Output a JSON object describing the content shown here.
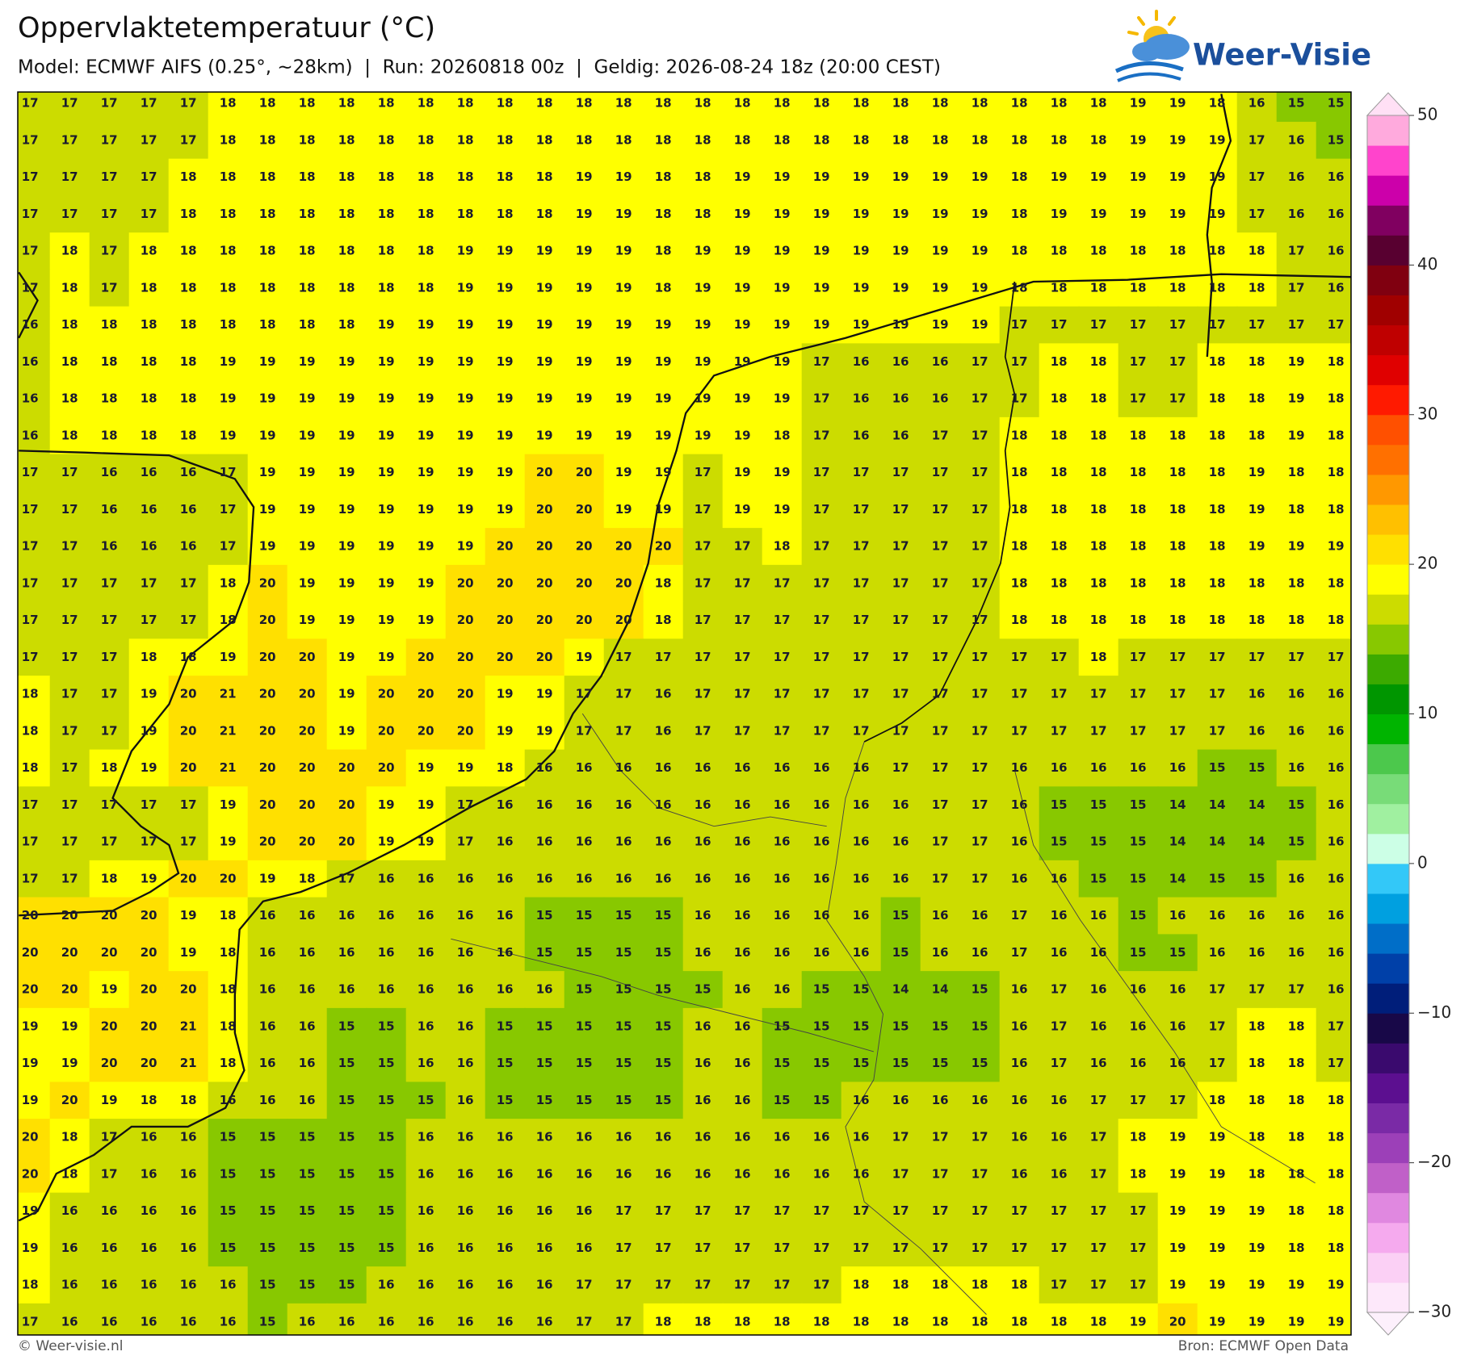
{
  "header": {
    "title": "Oppervlaktetemperatuur (°C)",
    "subtitle": "Model: ECMWF AIFS (0.25°, ~28km)  |  Run: 20260818 00z  |  Geldig: 2026-08-24 18z (20:00 CEST)",
    "logo": "Weer-Visie"
  },
  "chart_data": {
    "type": "heatmap",
    "values": [
      [
        17,
        17,
        17,
        17,
        17,
        18,
        18,
        18,
        18,
        18,
        18,
        18,
        18,
        18,
        18,
        18,
        18,
        18,
        18,
        18,
        18,
        18,
        18,
        18,
        18,
        18,
        18,
        18,
        19,
        19,
        18,
        16,
        15,
        15
      ],
      [
        17,
        17,
        17,
        17,
        17,
        18,
        18,
        18,
        18,
        18,
        18,
        18,
        18,
        18,
        18,
        18,
        18,
        18,
        18,
        18,
        18,
        18,
        18,
        18,
        18,
        18,
        18,
        18,
        19,
        19,
        19,
        17,
        16,
        15
      ],
      [
        17,
        17,
        17,
        17,
        18,
        18,
        18,
        18,
        18,
        18,
        18,
        18,
        18,
        18,
        19,
        19,
        18,
        18,
        19,
        19,
        19,
        19,
        19,
        19,
        19,
        18,
        19,
        19,
        19,
        19,
        19,
        17,
        16,
        16
      ],
      [
        17,
        17,
        17,
        17,
        18,
        18,
        18,
        18,
        18,
        18,
        18,
        18,
        18,
        18,
        19,
        19,
        18,
        18,
        19,
        19,
        19,
        19,
        19,
        19,
        19,
        18,
        19,
        19,
        19,
        19,
        19,
        17,
        16,
        16
      ],
      [
        17,
        18,
        17,
        18,
        18,
        18,
        18,
        18,
        18,
        18,
        18,
        19,
        19,
        19,
        19,
        19,
        18,
        19,
        19,
        19,
        19,
        19,
        19,
        19,
        19,
        18,
        18,
        18,
        18,
        18,
        18,
        18,
        17,
        16
      ],
      [
        17,
        18,
        17,
        18,
        18,
        18,
        18,
        18,
        18,
        18,
        18,
        19,
        19,
        19,
        19,
        19,
        18,
        19,
        19,
        19,
        19,
        19,
        19,
        19,
        19,
        18,
        18,
        18,
        18,
        18,
        18,
        18,
        17,
        16
      ],
      [
        16,
        18,
        18,
        18,
        18,
        18,
        18,
        18,
        18,
        19,
        19,
        19,
        19,
        19,
        19,
        19,
        19,
        19,
        19,
        19,
        19,
        19,
        19,
        19,
        19,
        17,
        17,
        17,
        17,
        17,
        17,
        17,
        17,
        17
      ],
      [
        16,
        18,
        18,
        18,
        18,
        19,
        19,
        19,
        19,
        19,
        19,
        19,
        19,
        19,
        19,
        19,
        19,
        19,
        19,
        19,
        17,
        16,
        16,
        16,
        17,
        17,
        18,
        18,
        17,
        17,
        18,
        18,
        19,
        18
      ],
      [
        16,
        18,
        18,
        18,
        18,
        19,
        19,
        19,
        19,
        19,
        19,
        19,
        19,
        19,
        19,
        19,
        19,
        19,
        19,
        19,
        17,
        16,
        16,
        16,
        17,
        17,
        18,
        18,
        17,
        17,
        18,
        18,
        19,
        18
      ],
      [
        16,
        18,
        18,
        18,
        18,
        19,
        19,
        19,
        19,
        19,
        19,
        19,
        19,
        19,
        19,
        19,
        19,
        19,
        19,
        18,
        17,
        16,
        16,
        17,
        17,
        18,
        18,
        18,
        18,
        18,
        18,
        18,
        19,
        18
      ],
      [
        17,
        17,
        16,
        16,
        16,
        17,
        19,
        19,
        19,
        19,
        19,
        19,
        19,
        20,
        20,
        19,
        19,
        17,
        19,
        19,
        17,
        17,
        17,
        17,
        17,
        18,
        18,
        18,
        18,
        18,
        18,
        19,
        18,
        18
      ],
      [
        17,
        17,
        16,
        16,
        16,
        17,
        19,
        19,
        19,
        19,
        19,
        19,
        19,
        20,
        20,
        19,
        19,
        17,
        19,
        19,
        17,
        17,
        17,
        17,
        17,
        18,
        18,
        18,
        18,
        18,
        18,
        19,
        18,
        18
      ],
      [
        17,
        17,
        16,
        16,
        16,
        17,
        19,
        19,
        19,
        19,
        19,
        19,
        20,
        20,
        20,
        20,
        20,
        17,
        17,
        18,
        17,
        17,
        17,
        17,
        17,
        18,
        18,
        18,
        18,
        18,
        18,
        19,
        19,
        19
      ],
      [
        17,
        17,
        17,
        17,
        17,
        18,
        20,
        19,
        19,
        19,
        19,
        20,
        20,
        20,
        20,
        20,
        18,
        17,
        17,
        17,
        17,
        17,
        17,
        17,
        17,
        18,
        18,
        18,
        18,
        18,
        18,
        18,
        18,
        18
      ],
      [
        17,
        17,
        17,
        17,
        17,
        18,
        20,
        19,
        19,
        19,
        19,
        20,
        20,
        20,
        20,
        20,
        18,
        17,
        17,
        17,
        17,
        17,
        17,
        17,
        17,
        18,
        18,
        18,
        18,
        18,
        18,
        18,
        18,
        18
      ],
      [
        17,
        17,
        17,
        18,
        18,
        19,
        20,
        20,
        19,
        19,
        20,
        20,
        20,
        20,
        19,
        17,
        17,
        17,
        17,
        17,
        17,
        17,
        17,
        17,
        17,
        17,
        17,
        18,
        17,
        17,
        17,
        17,
        17,
        17
      ],
      [
        18,
        17,
        17,
        19,
        20,
        21,
        20,
        20,
        19,
        20,
        20,
        20,
        19,
        19,
        17,
        17,
        16,
        17,
        17,
        17,
        17,
        17,
        17,
        17,
        17,
        17,
        17,
        17,
        17,
        17,
        17,
        16,
        16,
        16
      ],
      [
        18,
        17,
        17,
        19,
        20,
        21,
        20,
        20,
        19,
        20,
        20,
        20,
        19,
        19,
        17,
        17,
        16,
        17,
        17,
        17,
        17,
        17,
        17,
        17,
        17,
        17,
        17,
        17,
        17,
        17,
        17,
        16,
        16,
        16
      ],
      [
        18,
        17,
        18,
        19,
        20,
        21,
        20,
        20,
        20,
        20,
        19,
        19,
        18,
        16,
        16,
        16,
        16,
        16,
        16,
        16,
        16,
        16,
        17,
        17,
        17,
        16,
        16,
        16,
        16,
        16,
        15,
        15,
        16,
        16
      ],
      [
        17,
        17,
        17,
        17,
        17,
        19,
        20,
        20,
        20,
        19,
        19,
        17,
        16,
        16,
        16,
        16,
        16,
        16,
        16,
        16,
        16,
        16,
        16,
        17,
        17,
        16,
        15,
        15,
        15,
        14,
        14,
        14,
        15,
        16
      ],
      [
        17,
        17,
        17,
        17,
        17,
        19,
        20,
        20,
        20,
        19,
        19,
        17,
        16,
        16,
        16,
        16,
        16,
        16,
        16,
        16,
        16,
        16,
        16,
        17,
        17,
        16,
        15,
        15,
        15,
        14,
        14,
        14,
        15,
        16
      ],
      [
        17,
        17,
        18,
        19,
        20,
        20,
        19,
        18,
        17,
        16,
        16,
        16,
        16,
        16,
        16,
        16,
        16,
        16,
        16,
        16,
        16,
        16,
        16,
        17,
        17,
        16,
        16,
        15,
        15,
        14,
        15,
        15,
        16,
        16
      ],
      [
        20,
        20,
        20,
        20,
        19,
        18,
        16,
        16,
        16,
        16,
        16,
        16,
        16,
        15,
        15,
        15,
        15,
        16,
        16,
        16,
        16,
        16,
        15,
        16,
        16,
        17,
        16,
        16,
        15,
        16,
        16,
        16,
        16,
        16
      ],
      [
        20,
        20,
        20,
        20,
        19,
        18,
        16,
        16,
        16,
        16,
        16,
        16,
        16,
        15,
        15,
        15,
        15,
        16,
        16,
        16,
        16,
        16,
        15,
        16,
        16,
        17,
        16,
        16,
        15,
        15,
        16,
        16,
        16,
        16
      ],
      [
        20,
        20,
        19,
        20,
        20,
        18,
        16,
        16,
        16,
        16,
        16,
        16,
        16,
        16,
        15,
        15,
        15,
        15,
        16,
        16,
        15,
        15,
        14,
        14,
        15,
        16,
        17,
        16,
        16,
        16,
        17,
        17,
        17,
        16
      ],
      [
        19,
        19,
        20,
        20,
        21,
        18,
        16,
        16,
        15,
        15,
        16,
        16,
        15,
        15,
        15,
        15,
        15,
        16,
        16,
        15,
        15,
        15,
        15,
        15,
        15,
        16,
        17,
        16,
        16,
        16,
        17,
        18,
        18,
        17
      ],
      [
        19,
        19,
        20,
        20,
        21,
        18,
        16,
        16,
        15,
        15,
        16,
        16,
        15,
        15,
        15,
        15,
        15,
        16,
        16,
        15,
        15,
        15,
        15,
        15,
        15,
        16,
        17,
        16,
        16,
        16,
        17,
        18,
        18,
        17
      ],
      [
        19,
        20,
        19,
        18,
        18,
        16,
        16,
        16,
        15,
        15,
        15,
        16,
        15,
        15,
        15,
        15,
        15,
        16,
        16,
        15,
        15,
        16,
        16,
        16,
        16,
        16,
        16,
        17,
        17,
        17,
        18,
        18,
        18,
        18
      ],
      [
        20,
        18,
        17,
        16,
        16,
        15,
        15,
        15,
        15,
        15,
        16,
        16,
        16,
        16,
        16,
        16,
        16,
        16,
        16,
        16,
        16,
        16,
        17,
        17,
        17,
        16,
        16,
        17,
        18,
        19,
        19,
        18,
        18,
        18
      ],
      [
        20,
        18,
        17,
        16,
        16,
        15,
        15,
        15,
        15,
        15,
        16,
        16,
        16,
        16,
        16,
        16,
        16,
        16,
        16,
        16,
        16,
        16,
        17,
        17,
        17,
        16,
        16,
        17,
        18,
        19,
        19,
        18,
        18,
        18
      ],
      [
        19,
        16,
        16,
        16,
        16,
        15,
        15,
        15,
        15,
        15,
        16,
        16,
        16,
        16,
        16,
        17,
        17,
        17,
        17,
        17,
        17,
        17,
        17,
        17,
        17,
        17,
        17,
        17,
        17,
        19,
        19,
        19,
        18,
        18
      ],
      [
        19,
        16,
        16,
        16,
        16,
        15,
        15,
        15,
        15,
        15,
        16,
        16,
        16,
        16,
        16,
        17,
        17,
        17,
        17,
        17,
        17,
        17,
        17,
        17,
        17,
        17,
        17,
        17,
        17,
        19,
        19,
        19,
        18,
        18
      ],
      [
        18,
        16,
        16,
        16,
        16,
        16,
        15,
        15,
        15,
        16,
        16,
        16,
        16,
        16,
        17,
        17,
        17,
        17,
        17,
        17,
        17,
        18,
        18,
        18,
        18,
        18,
        17,
        17,
        17,
        19,
        19,
        19,
        19,
        19
      ],
      [
        17,
        16,
        16,
        16,
        16,
        16,
        15,
        16,
        16,
        16,
        16,
        16,
        16,
        16,
        17,
        17,
        18,
        18,
        18,
        18,
        18,
        18,
        18,
        18,
        18,
        18,
        18,
        18,
        19,
        20,
        19,
        19,
        19,
        19
      ]
    ],
    "colorbar": {
      "lim": [
        -30,
        50
      ],
      "ticks": [
        {
          "value": -30,
          "label": "−30"
        },
        {
          "value": -20,
          "label": "−20"
        },
        {
          "value": -10,
          "label": "−10"
        },
        0,
        10,
        20,
        30,
        40,
        50
      ],
      "colors": [
        "#fde8fa",
        "#fbd0f5",
        "#f5aaee",
        "#e088e0",
        "#c060c8",
        "#9c40b8",
        "#7a2aa6",
        "#5c0f90",
        "#3a0a6e",
        "#180848",
        "#001e7a",
        "#0040a8",
        "#006ec8",
        "#00a0e0",
        "#33c8f8",
        "#ccffe6",
        "#a0f0a0",
        "#78dc78",
        "#4cc84c",
        "#00b400",
        "#009600",
        "#3caa00",
        "#88c800",
        "#ccdc00",
        "#ffff00",
        "#ffe000",
        "#ffc000",
        "#ff9800",
        "#ff7000",
        "#ff5000",
        "#ff1a00",
        "#e00000",
        "#bf0000",
        "#a00000",
        "#800010",
        "#580030",
        "#800060",
        "#cc00aa",
        "#ff44cc",
        "#ffaadd"
      ]
    }
  },
  "footer": {
    "left": "© Weer-visie.nl",
    "right": "Bron: ECMWF Open Data"
  }
}
